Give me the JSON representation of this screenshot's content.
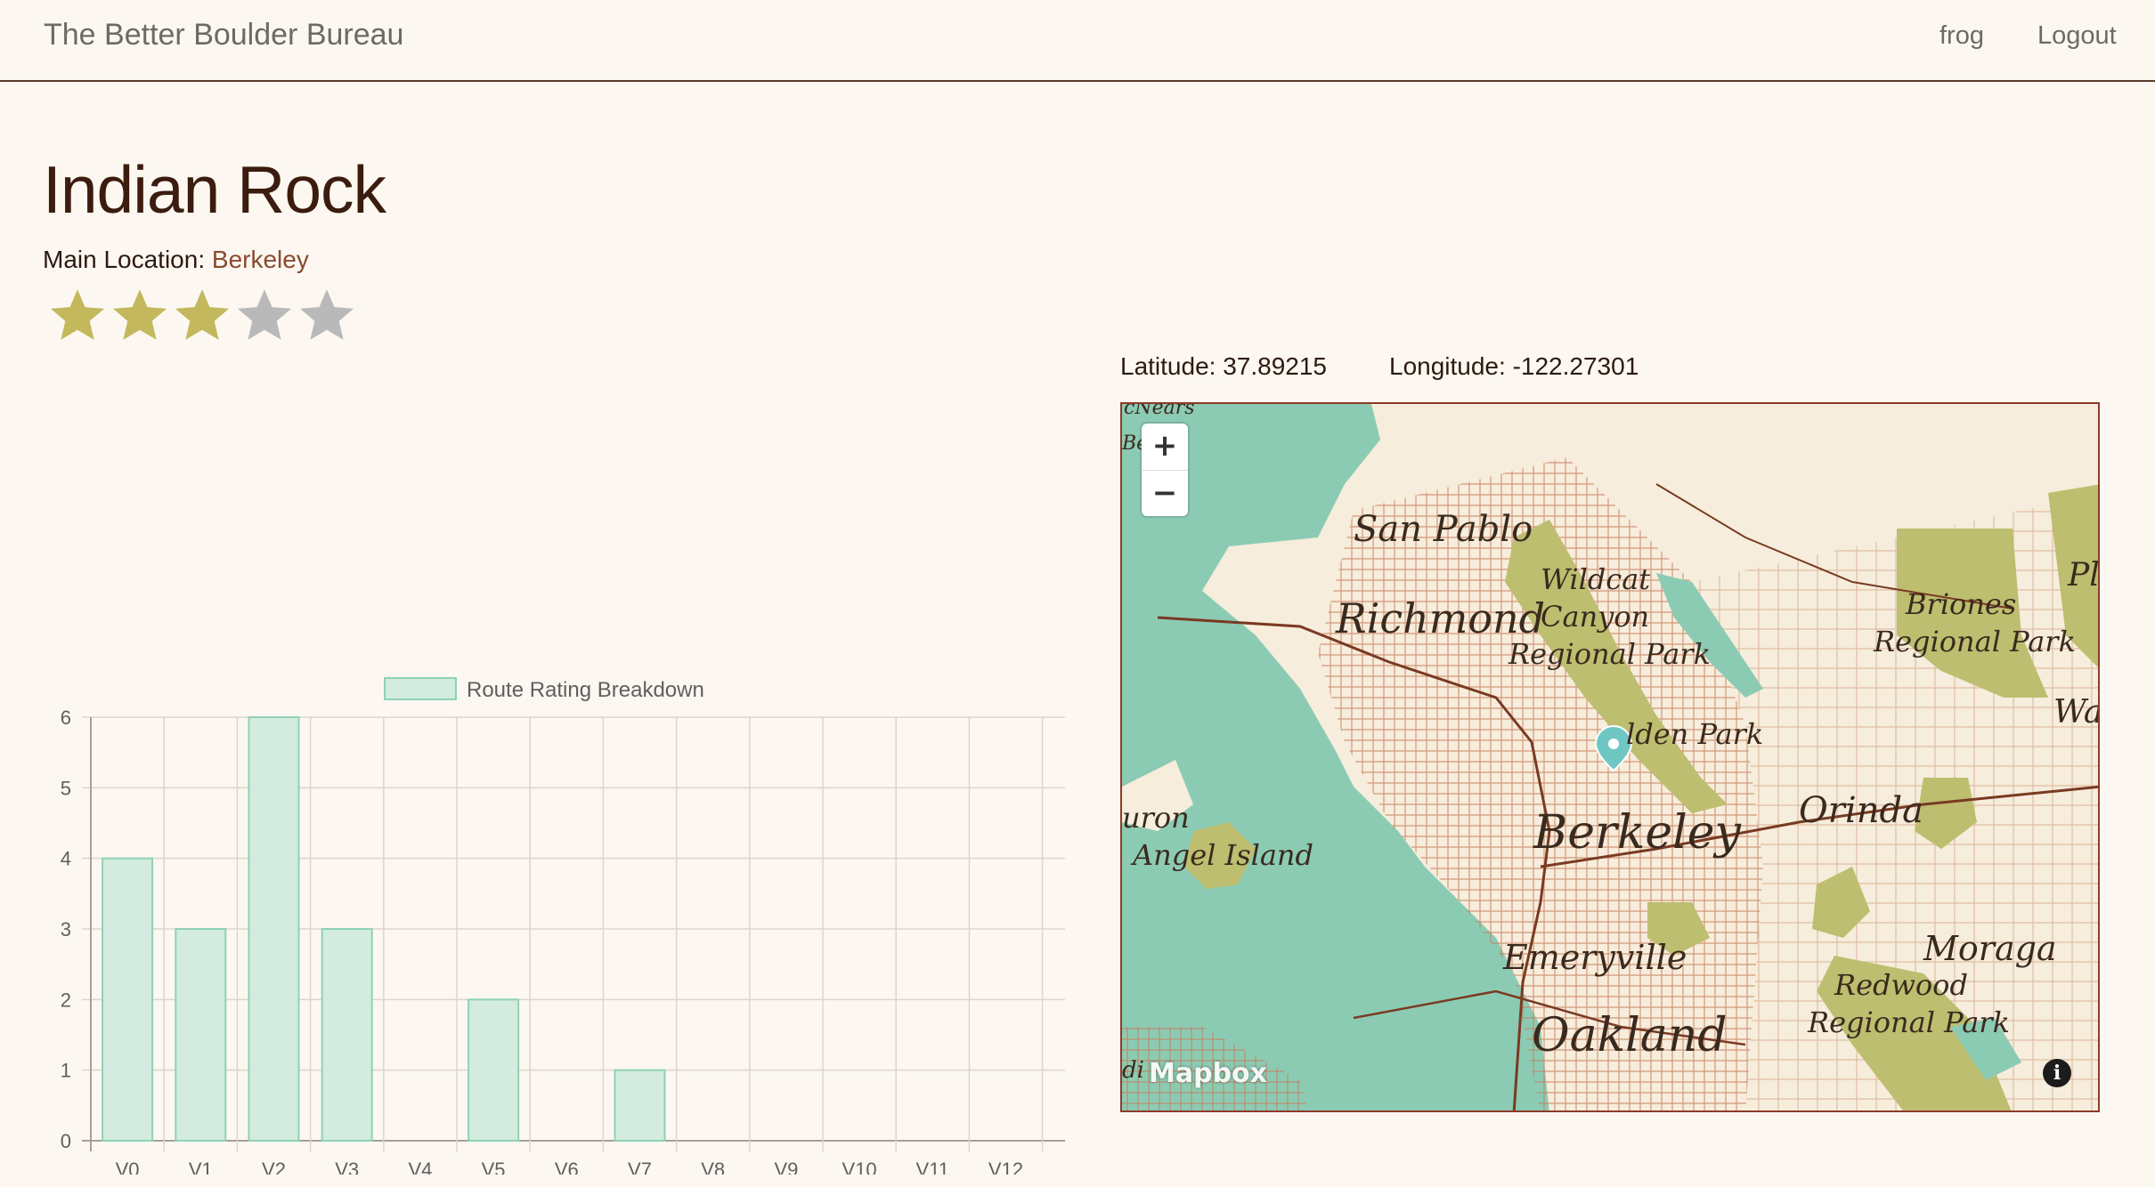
{
  "navbar": {
    "brand": "The Better Boulder Bureau",
    "user": "frog",
    "logout": "Logout"
  },
  "area": {
    "name": "Indian Rock",
    "main_location_label": "Main Location:",
    "main_location_value": "Berkeley",
    "rating": 3,
    "rating_max": 5
  },
  "colors": {
    "star_on": "#c3b85c",
    "star_off": "#b9b9b9",
    "bar_fill": "#d4ebdf",
    "bar_stroke": "#8fd1b7",
    "water": "#8ccbb3",
    "park": "#bdbe6f"
  },
  "map": {
    "latitude_label": "Latitude:",
    "latitude_value": "37.89215",
    "longitude_label": "Longitude:",
    "longitude_value": "-122.27301",
    "zoom_in": "+",
    "zoom_out": "−",
    "attribution_logo": "Mapbox",
    "info_icon": "i",
    "labels": {
      "san_pablo": "San Pablo",
      "richmond": "Richmond",
      "wildcat": "Wildcat",
      "canyon": "Canyon",
      "regional_park_1": "Regional Park",
      "briones": "Briones",
      "regional_park_2": "Regional Park",
      "tilden": "lden Park",
      "berkeley": "Berkeley",
      "orinda": "Orinda",
      "angel_island": "Angel Island",
      "huron": "uron",
      "emeryville": "Emeryville",
      "oakland": "Oakland",
      "moraga": "Moraga",
      "redwood": "Redwood",
      "regional_park_3": "Regional Park",
      "pl": "Pl",
      "wa": "Wa",
      "mcnears": "cNears",
      "be": "Be",
      "di": "di"
    }
  },
  "chart_data": {
    "type": "bar",
    "title": "",
    "legend": "Route Rating Breakdown",
    "legend_position": "top",
    "categories": [
      "V0",
      "V1",
      "V2",
      "V3",
      "V4",
      "V5",
      "V6",
      "V7",
      "V8",
      "V9",
      "V10",
      "V11",
      "V12"
    ],
    "values": [
      4,
      3,
      6,
      3,
      0,
      2,
      0,
      1,
      0,
      0,
      0,
      0,
      0
    ],
    "yticks": [
      "0",
      "1",
      "2",
      "3",
      "4",
      "5",
      "6"
    ],
    "ylim": [
      0,
      6
    ],
    "grid": true
  }
}
